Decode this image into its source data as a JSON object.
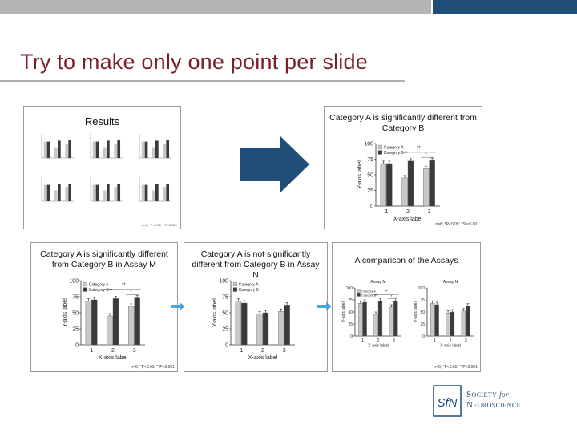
{
  "slide": {
    "title": "Try to make only one point per slide",
    "colors": {
      "title": "#7a1f2b",
      "band_grey": "#b5b5b5",
      "band_blue": "#1f4e79",
      "arrow": "#1f4e79",
      "small_arrow": "#4aa3df"
    }
  },
  "results_panel": {
    "title": "Results",
    "footnote": "n=6; *P<0.05; **P<0.001"
  },
  "chart_b": {
    "title": "Category A is significantly different from Category B",
    "footnote": "n=6; *P<0.05; **P<0.001"
  },
  "chart_m": {
    "title": "Category A is significantly different from Category B in Assay M",
    "footnote": "n=6; *P<0.05; **P<0.001"
  },
  "chart_n": {
    "title": "Category A is not significantly different from Category B in Assay N"
  },
  "chart_comp": {
    "title": "A comparison of the Assays",
    "footnote": "n=6; *P<0.05; **P<0.001"
  },
  "logo": {
    "line1_main": "Society",
    "line1_for": "for",
    "line2": "Neuroscience",
    "mark": "SfN",
    "color": "#1f4e79"
  },
  "chart_data": [
    {
      "type": "bar",
      "title": "Category A is significantly different from Category B",
      "xlabel": "X-axis label",
      "ylabel": "Y-axis label",
      "categories": [
        "1",
        "2",
        "3"
      ],
      "ylim": [
        0,
        100
      ],
      "yticks": [
        0,
        25,
        50,
        75,
        100
      ],
      "series": [
        {
          "name": "Category A",
          "values": [
            68,
            45,
            60
          ],
          "color": "#c8c8c8"
        },
        {
          "name": "Category B",
          "values": [
            68,
            72,
            73
          ],
          "color": "#3a3a3a"
        }
      ],
      "annotations": [
        "**",
        "*",
        "**"
      ],
      "legend": "top-left"
    },
    {
      "type": "bar",
      "title": "Category A is significantly different from Category B in Assay M",
      "xlabel": "X-axis label",
      "ylabel": "Y-axis label",
      "categories": [
        "1",
        "2",
        "3"
      ],
      "ylim": [
        0,
        100
      ],
      "yticks": [
        0,
        25,
        50,
        75,
        100
      ],
      "series": [
        {
          "name": "Category A",
          "values": [
            68,
            45,
            60
          ],
          "color": "#c8c8c8"
        },
        {
          "name": "Category B",
          "values": [
            70,
            72,
            73
          ],
          "color": "#3a3a3a"
        }
      ],
      "annotations": [
        "**",
        "*",
        "**"
      ],
      "legend": "top-left"
    },
    {
      "type": "bar",
      "title": "Category A is not significantly different from Category B in Assay N",
      "xlabel": "X-axis label",
      "ylabel": "Y-axis label",
      "categories": [
        "1",
        "2",
        "3"
      ],
      "ylim": [
        0,
        100
      ],
      "yticks": [
        0,
        25,
        50,
        75,
        100
      ],
      "series": [
        {
          "name": "Category A",
          "values": [
            68,
            48,
            52
          ],
          "color": "#c8c8c8"
        },
        {
          "name": "Category B",
          "values": [
            65,
            50,
            62
          ],
          "color": "#3a3a3a"
        }
      ],
      "legend": "top-left"
    },
    {
      "type": "bar",
      "title": "Assay M",
      "xlabel": "X-axis label",
      "ylabel": "Y-axis label",
      "categories": [
        "1",
        "2",
        "3"
      ],
      "ylim": [
        0,
        100
      ],
      "yticks": [
        0,
        25,
        50,
        75,
        100
      ],
      "series": [
        {
          "name": "Category A",
          "values": [
            68,
            45,
            60
          ],
          "color": "#c8c8c8"
        },
        {
          "name": "Category B",
          "values": [
            70,
            72,
            73
          ],
          "color": "#3a3a3a"
        }
      ],
      "annotations": [
        "**",
        "*",
        "**"
      ],
      "legend": "top-left"
    },
    {
      "type": "bar",
      "title": "Assay N",
      "xlabel": "X-axis label",
      "ylabel": "Y-axis label",
      "categories": [
        "1",
        "2",
        "3"
      ],
      "ylim": [
        0,
        100
      ],
      "yticks": [
        0,
        25,
        50,
        75,
        100
      ],
      "series": [
        {
          "name": "Category A",
          "values": [
            68,
            48,
            52
          ],
          "color": "#c8c8c8"
        },
        {
          "name": "Category B",
          "values": [
            65,
            50,
            62
          ],
          "color": "#3a3a3a"
        }
      ]
    }
  ]
}
